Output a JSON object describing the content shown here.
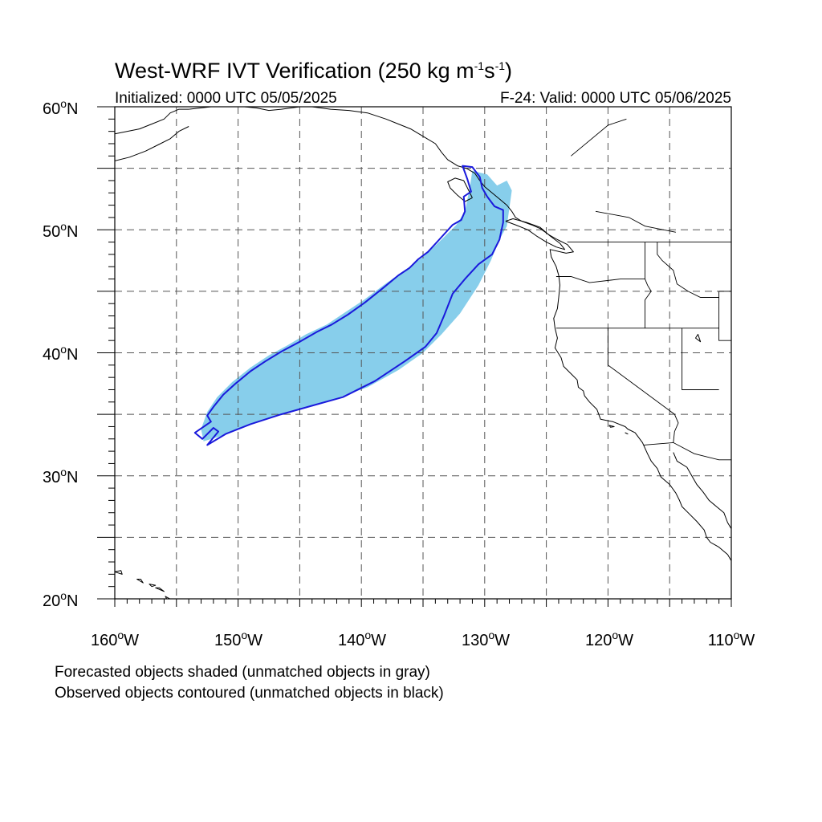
{
  "title": {
    "main": "West-WRF IVT Verification (250 kg m",
    "sup1": "-1",
    "mid": "s",
    "sup2": "-1",
    "end": ")"
  },
  "subtitle": {
    "left": "Initialized: 0000 UTC 05/05/2025",
    "right": "F-24: Valid: 0000 UTC 05/06/2025"
  },
  "axes": {
    "lat_labels": [
      {
        "num": "60",
        "deg": "o",
        "hemi": "N"
      },
      {
        "num": "50",
        "deg": "o",
        "hemi": "N"
      },
      {
        "num": "40",
        "deg": "o",
        "hemi": "N"
      },
      {
        "num": "30",
        "deg": "o",
        "hemi": "N"
      },
      {
        "num": "20",
        "deg": "o",
        "hemi": "N"
      }
    ],
    "lon_labels": [
      {
        "num": "160",
        "deg": "o",
        "hemi": "W"
      },
      {
        "num": "150",
        "deg": "o",
        "hemi": "W"
      },
      {
        "num": "140",
        "deg": "o",
        "hemi": "W"
      },
      {
        "num": "130",
        "deg": "o",
        "hemi": "W"
      },
      {
        "num": "120",
        "deg": "o",
        "hemi": "W"
      },
      {
        "num": "110",
        "deg": "o",
        "hemi": "W"
      }
    ],
    "lat_range": [
      20,
      60
    ],
    "lon_range": [
      -160,
      -110
    ],
    "grid_interval_deg": 5,
    "grid": "dashed"
  },
  "footer": {
    "line1": "Forecasted objects shaded (unmatched objects in gray)",
    "line2": "Observed objects contoured (unmatched objects in black)"
  },
  "colors": {
    "forecast_fill": "#87ceeb",
    "observed_contour": "#1a1adc",
    "coastline": "#000000",
    "grid": "#555555"
  },
  "objects": {
    "forecast_object": {
      "style": "shaded",
      "matched": true,
      "outline_lonlat": [
        [
          -152.8,
          32.8
        ],
        [
          -151.5,
          33.2
        ],
        [
          -149.5,
          34.0
        ],
        [
          -147.0,
          34.9
        ],
        [
          -144.5,
          35.6
        ],
        [
          -142.0,
          36.3
        ],
        [
          -139.5,
          37.2
        ],
        [
          -137.0,
          38.6
        ],
        [
          -135.0,
          40.0
        ],
        [
          -133.5,
          41.5
        ],
        [
          -132.0,
          43.2
        ],
        [
          -130.5,
          45.5
        ],
        [
          -129.5,
          47.5
        ],
        [
          -128.8,
          49.2
        ],
        [
          -128.2,
          50.3
        ],
        [
          -127.8,
          53.2
        ],
        [
          -128.2,
          54.0
        ],
        [
          -129.0,
          53.6
        ],
        [
          -129.8,
          54.5
        ],
        [
          -131.0,
          54.8
        ],
        [
          -131.2,
          53.5
        ],
        [
          -131.6,
          51.5
        ],
        [
          -132.3,
          50.4
        ],
        [
          -133.5,
          49.2
        ],
        [
          -135.0,
          47.8
        ],
        [
          -136.5,
          46.7
        ],
        [
          -138.2,
          45.5
        ],
        [
          -139.8,
          44.3
        ],
        [
          -141.3,
          43.3
        ],
        [
          -142.8,
          42.3
        ],
        [
          -144.5,
          41.5
        ],
        [
          -146.0,
          40.6
        ],
        [
          -147.5,
          39.8
        ],
        [
          -149.0,
          38.8
        ],
        [
          -150.5,
          37.6
        ],
        [
          -151.7,
          36.4
        ],
        [
          -152.5,
          35.2
        ],
        [
          -153.0,
          33.8
        ],
        [
          -152.8,
          32.8
        ]
      ]
    },
    "observed_object": {
      "style": "contour",
      "matched": true,
      "outline_lonlat": [
        [
          -152.5,
          32.5
        ],
        [
          -151.0,
          33.4
        ],
        [
          -149.0,
          34.2
        ],
        [
          -146.5,
          35.0
        ],
        [
          -144.0,
          35.7
        ],
        [
          -141.5,
          36.4
        ],
        [
          -138.9,
          37.7
        ],
        [
          -136.5,
          39.3
        ],
        [
          -134.8,
          40.5
        ],
        [
          -133.9,
          41.6
        ],
        [
          -133.3,
          43.0
        ],
        [
          -132.6,
          44.8
        ],
        [
          -131.6,
          46.0
        ],
        [
          -130.5,
          47.2
        ],
        [
          -129.4,
          48.0
        ],
        [
          -128.8,
          49.2
        ],
        [
          -128.5,
          50.6
        ],
        [
          -128.5,
          51.6
        ],
        [
          -129.2,
          51.9
        ],
        [
          -129.8,
          52.7
        ],
        [
          -130.2,
          53.4
        ],
        [
          -130.4,
          54.3
        ],
        [
          -131.0,
          55.1
        ],
        [
          -131.8,
          55.2
        ],
        [
          -131.4,
          54.1
        ],
        [
          -131.1,
          53.1
        ],
        [
          -131.7,
          52.7
        ],
        [
          -131.6,
          51.5
        ],
        [
          -131.9,
          50.8
        ],
        [
          -132.6,
          50.4
        ],
        [
          -133.6,
          49.3
        ],
        [
          -134.6,
          48.2
        ],
        [
          -135.4,
          47.6
        ],
        [
          -136.1,
          46.9
        ],
        [
          -137.0,
          46.3
        ],
        [
          -138.2,
          45.3
        ],
        [
          -139.7,
          44.1
        ],
        [
          -141.1,
          43.1
        ],
        [
          -142.4,
          42.3
        ],
        [
          -143.6,
          41.7
        ],
        [
          -145.0,
          40.9
        ],
        [
          -146.5,
          40.1
        ],
        [
          -147.8,
          39.3
        ],
        [
          -149.0,
          38.5
        ],
        [
          -150.2,
          37.5
        ],
        [
          -151.2,
          36.6
        ],
        [
          -152.0,
          35.6
        ],
        [
          -152.5,
          34.9
        ],
        [
          -152.2,
          34.4
        ],
        [
          -153.5,
          33.5
        ],
        [
          -152.9,
          33.0
        ],
        [
          -152.0,
          33.9
        ],
        [
          -151.6,
          33.6
        ],
        [
          -152.5,
          32.5
        ]
      ]
    }
  },
  "geography": {
    "coastlines_lonlat": [
      [
        [
          -160.0,
          57.8
        ],
        [
          -158.0,
          58.2
        ],
        [
          -157.0,
          58.6
        ],
        [
          -156.0,
          59.0
        ],
        [
          -155.5,
          59.5
        ],
        [
          -154.8,
          59.8
        ],
        [
          -154.0,
          59.8
        ]
      ],
      [
        [
          -160.0,
          55.6
        ],
        [
          -158.8,
          55.9
        ],
        [
          -157.5,
          56.4
        ],
        [
          -156.5,
          56.9
        ],
        [
          -155.5,
          57.4
        ],
        [
          -154.8,
          58.0
        ],
        [
          -154.0,
          58.4
        ]
      ],
      [
        [
          -154.0,
          59.8
        ],
        [
          -152.2,
          60.0
        ],
        [
          -150.0,
          60.0
        ]
      ],
      [
        [
          -149.5,
          60.0
        ],
        [
          -148.5,
          59.9
        ],
        [
          -147.5,
          59.7
        ],
        [
          -146.5,
          59.8
        ],
        [
          -145.0,
          60.0
        ]
      ],
      [
        [
          -144.0,
          60.0
        ],
        [
          -142.5,
          59.8
        ],
        [
          -141.0,
          59.7
        ],
        [
          -139.5,
          59.5
        ],
        [
          -138.0,
          59.0
        ],
        [
          -137.0,
          58.6
        ],
        [
          -136.0,
          58.2
        ],
        [
          -135.0,
          57.6
        ],
        [
          -134.0,
          57.0
        ],
        [
          -133.5,
          56.3
        ],
        [
          -133.0,
          55.7
        ],
        [
          -132.2,
          55.2
        ],
        [
          -131.5,
          55.0
        ],
        [
          -130.8,
          54.6
        ],
        [
          -130.4,
          54.0
        ],
        [
          -130.0,
          53.5
        ],
        [
          -129.4,
          53.0
        ],
        [
          -128.8,
          52.5
        ],
        [
          -128.2,
          52.0
        ],
        [
          -127.8,
          51.5
        ],
        [
          -127.5,
          51.0
        ],
        [
          -127.0,
          50.7
        ],
        [
          -126.2,
          50.4
        ],
        [
          -125.5,
          50.1
        ],
        [
          -124.8,
          49.6
        ],
        [
          -124.1,
          49.2
        ],
        [
          -123.3,
          48.8
        ],
        [
          -122.8,
          48.2
        ],
        [
          -123.4,
          48.1
        ],
        [
          -124.7,
          48.4
        ],
        [
          -124.6,
          47.8
        ],
        [
          -124.2,
          47.0
        ],
        [
          -124.0,
          46.3
        ],
        [
          -123.9,
          45.5
        ],
        [
          -124.0,
          44.5
        ],
        [
          -124.1,
          43.6
        ],
        [
          -124.4,
          42.8
        ],
        [
          -124.3,
          42.0
        ],
        [
          -124.1,
          41.2
        ],
        [
          -124.3,
          40.4
        ],
        [
          -123.8,
          39.6
        ],
        [
          -123.6,
          38.9
        ],
        [
          -122.9,
          38.2
        ],
        [
          -122.5,
          37.8
        ],
        [
          -122.4,
          37.2
        ],
        [
          -122.0,
          36.9
        ],
        [
          -121.9,
          36.5
        ],
        [
          -121.5,
          36.0
        ],
        [
          -120.9,
          35.4
        ],
        [
          -120.6,
          34.6
        ],
        [
          -119.6,
          34.4
        ],
        [
          -118.6,
          34.0
        ],
        [
          -118.4,
          33.8
        ],
        [
          -117.8,
          33.5
        ],
        [
          -117.2,
          32.7
        ],
        [
          -116.8,
          31.8
        ],
        [
          -116.5,
          31.2
        ],
        [
          -116.0,
          30.6
        ],
        [
          -115.7,
          29.9
        ],
        [
          -115.0,
          29.3
        ],
        [
          -114.5,
          28.6
        ],
        [
          -114.2,
          28.0
        ],
        [
          -114.0,
          27.5
        ],
        [
          -113.5,
          27.0
        ],
        [
          -112.8,
          26.3
        ],
        [
          -112.2,
          25.6
        ],
        [
          -112.0,
          25.0
        ],
        [
          -111.7,
          24.6
        ],
        [
          -111.0,
          24.2
        ],
        [
          -110.3,
          23.6
        ],
        [
          -110.0,
          23.1
        ]
      ],
      [
        [
          -114.7,
          31.9
        ],
        [
          -114.4,
          31.2
        ],
        [
          -113.6,
          30.7
        ],
        [
          -113.2,
          30.0
        ],
        [
          -112.8,
          29.3
        ],
        [
          -112.3,
          28.7
        ],
        [
          -111.8,
          28.0
        ],
        [
          -111.2,
          27.5
        ],
        [
          -110.6,
          27.0
        ],
        [
          -110.3,
          26.2
        ],
        [
          -110.0,
          25.7
        ]
      ],
      [
        [
          -131.0,
          52.6
        ],
        [
          -131.6,
          52.3
        ],
        [
          -132.2,
          52.8
        ],
        [
          -132.8,
          53.4
        ],
        [
          -133.0,
          53.9
        ],
        [
          -132.4,
          54.2
        ],
        [
          -131.7,
          54.0
        ],
        [
          -131.4,
          53.4
        ],
        [
          -131.0,
          52.6
        ]
      ],
      [
        [
          -128.3,
          50.7
        ],
        [
          -127.5,
          50.4
        ],
        [
          -126.5,
          50.0
        ],
        [
          -125.8,
          49.5
        ],
        [
          -125.0,
          49.0
        ],
        [
          -124.2,
          48.6
        ],
        [
          -123.5,
          48.4
        ],
        [
          -123.9,
          48.9
        ],
        [
          -124.7,
          49.5
        ],
        [
          -125.5,
          50.2
        ],
        [
          -126.6,
          50.6
        ],
        [
          -127.7,
          50.9
        ],
        [
          -128.3,
          50.7
        ]
      ]
    ],
    "islands_lonlat": [
      [
        [
          -160.0,
          22.2
        ],
        [
          -159.4,
          22.0
        ],
        [
          -159.5,
          22.3
        ],
        [
          -160.0,
          22.2
        ]
      ],
      [
        [
          -158.2,
          21.6
        ],
        [
          -157.7,
          21.3
        ],
        [
          -157.9,
          21.6
        ],
        [
          -158.2,
          21.6
        ]
      ],
      [
        [
          -157.2,
          21.2
        ],
        [
          -156.7,
          21.1
        ],
        [
          -157.0,
          21.0
        ],
        [
          -157.2,
          21.2
        ]
      ],
      [
        [
          -156.7,
          20.9
        ],
        [
          -156.0,
          20.6
        ],
        [
          -156.4,
          20.9
        ],
        [
          -156.7,
          20.9
        ]
      ],
      [
        [
          -155.9,
          20.2
        ],
        [
          -155.0,
          19.7
        ],
        [
          -155.6,
          19.6
        ],
        [
          -155.9,
          20.2
        ]
      ],
      [
        [
          -119.9,
          34.1
        ],
        [
          -119.5,
          34.0
        ],
        [
          -119.8,
          33.95
        ],
        [
          -119.9,
          34.1
        ]
      ],
      [
        [
          -118.6,
          33.5
        ],
        [
          -118.4,
          33.4
        ],
        [
          -118.5,
          33.45
        ],
        [
          -118.6,
          33.5
        ]
      ],
      [
        [
          -112.9,
          41.2
        ],
        [
          -112.5,
          40.9
        ],
        [
          -112.7,
          41.5
        ],
        [
          -112.9,
          41.2
        ]
      ]
    ],
    "borders_lonlat": [
      [
        [
          -123.3,
          49.0
        ],
        [
          -110.0,
          49.0
        ]
      ],
      [
        [
          -124.2,
          46.2
        ],
        [
          -123.0,
          46.2
        ],
        [
          -121.5,
          45.7
        ],
        [
          -119.0,
          46.0
        ],
        [
          -117.0,
          46.0
        ],
        [
          -117.0,
          49.0
        ]
      ],
      [
        [
          -124.2,
          42.0
        ],
        [
          -111.0,
          42.0
        ]
      ],
      [
        [
          -117.0,
          46.0
        ],
        [
          -116.8,
          45.5
        ],
        [
          -116.5,
          45.0
        ],
        [
          -117.0,
          44.3
        ],
        [
          -117.0,
          42.0
        ]
      ],
      [
        [
          -120.0,
          42.0
        ],
        [
          -120.0,
          39.0
        ],
        [
          -114.6,
          35.0
        ],
        [
          -114.3,
          34.3
        ],
        [
          -114.6,
          33.6
        ],
        [
          -114.7,
          32.7
        ]
      ],
      [
        [
          -114.0,
          42.0
        ],
        [
          -114.0,
          37.0
        ],
        [
          -111.0,
          37.0
        ]
      ],
      [
        [
          -116.0,
          49.0
        ],
        [
          -116.0,
          48.0
        ],
        [
          -115.6,
          47.5
        ],
        [
          -114.7,
          46.7
        ],
        [
          -114.4,
          45.6
        ],
        [
          -113.5,
          45.0
        ],
        [
          -112.5,
          44.5
        ],
        [
          -111.0,
          44.5
        ]
      ],
      [
        [
          -111.0,
          45.0
        ],
        [
          -110.0,
          45.0
        ]
      ],
      [
        [
          -111.0,
          45.0
        ],
        [
          -111.0,
          41.0
        ],
        [
          -110.0,
          41.0
        ]
      ],
      [
        [
          -117.1,
          32.5
        ],
        [
          -114.7,
          32.7
        ],
        [
          -113.0,
          31.8
        ],
        [
          -111.0,
          31.3
        ],
        [
          -110.0,
          31.3
        ]
      ],
      [
        [
          -123.0,
          56.0
        ],
        [
          -120.0,
          58.5
        ],
        [
          -118.5,
          59.0
        ]
      ],
      [
        [
          -121.0,
          51.5
        ],
        [
          -118.3,
          51.0
        ],
        [
          -117.0,
          50.3
        ],
        [
          -114.5,
          49.8
        ]
      ]
    ]
  }
}
